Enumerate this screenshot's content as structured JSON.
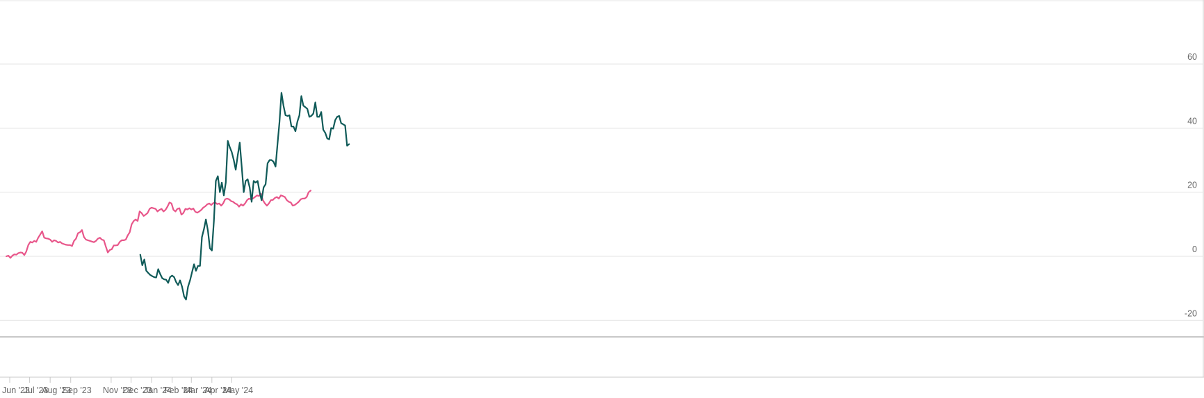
{
  "chart_data": {
    "type": "line",
    "title": "",
    "xlabel": "",
    "ylabel": "",
    "ylim": [
      -20,
      60
    ],
    "y_ticks": [
      -20,
      0,
      20,
      40,
      60
    ],
    "y_axis_side": "right",
    "grid": "horizontal",
    "x_ticks": [
      {
        "label": "Jun '23",
        "date": "2023-06-01"
      },
      {
        "label": "Jul '23",
        "date": "2023-07-01"
      },
      {
        "label": "Aug '23",
        "date": "2023-08-01"
      },
      {
        "label": "Sep '23",
        "date": "2023-09-01"
      },
      {
        "label": "Nov '23",
        "date": "2023-11-01"
      },
      {
        "label": "Dec '23",
        "date": "2023-12-01"
      },
      {
        "label": "Jan '24",
        "date": "2024-01-01"
      },
      {
        "label": "Feb '24",
        "date": "2024-02-01"
      },
      {
        "label": "Mar '24",
        "date": "2024-03-01"
      },
      {
        "label": "Apr '24",
        "date": "2024-04-01"
      },
      {
        "label": "May '24",
        "date": "2024-05-01"
      }
    ],
    "series": [
      {
        "color": "#e8568a",
        "points": [
          [
            "2023-05-27",
            0
          ],
          [
            "2023-05-30",
            0.2
          ],
          [
            "2023-06-02",
            -0.5
          ],
          [
            "2023-06-05",
            0.2
          ],
          [
            "2023-06-08",
            0.6
          ],
          [
            "2023-06-11",
            0.5
          ],
          [
            "2023-06-14",
            1.0
          ],
          [
            "2023-06-17",
            1.2
          ],
          [
            "2023-06-20",
            1.1
          ],
          [
            "2023-06-23",
            0.4
          ],
          [
            "2023-06-26",
            1.5
          ],
          [
            "2023-06-29",
            3.5
          ],
          [
            "2023-07-02",
            4.5
          ],
          [
            "2023-07-05",
            4.3
          ],
          [
            "2023-07-08",
            4.8
          ],
          [
            "2023-07-11",
            4.5
          ],
          [
            "2023-07-14",
            5.8
          ],
          [
            "2023-07-17",
            6.8
          ],
          [
            "2023-07-20",
            7.8
          ],
          [
            "2023-07-23",
            5.8
          ],
          [
            "2023-07-26",
            5.6
          ],
          [
            "2023-07-29",
            5.5
          ],
          [
            "2023-08-01",
            5.2
          ],
          [
            "2023-08-04",
            4.5
          ],
          [
            "2023-08-07",
            5.0
          ],
          [
            "2023-08-10",
            4.8
          ],
          [
            "2023-08-13",
            4.3
          ],
          [
            "2023-08-16",
            4.5
          ],
          [
            "2023-08-19",
            4.0
          ],
          [
            "2023-08-22",
            3.8
          ],
          [
            "2023-08-25",
            3.6
          ],
          [
            "2023-08-28",
            3.5
          ],
          [
            "2023-08-31",
            3.5
          ],
          [
            "2023-09-03",
            3.2
          ],
          [
            "2023-09-06",
            4.8
          ],
          [
            "2023-09-09",
            5.5
          ],
          [
            "2023-09-12",
            7.2
          ],
          [
            "2023-09-15",
            7.5
          ],
          [
            "2023-09-18",
            8.2
          ],
          [
            "2023-09-21",
            6.0
          ],
          [
            "2023-09-24",
            5.2
          ],
          [
            "2023-09-27",
            5.0
          ],
          [
            "2023-09-30",
            4.8
          ],
          [
            "2023-10-03",
            4.6
          ],
          [
            "2023-10-06",
            4.4
          ],
          [
            "2023-10-09",
            4.8
          ],
          [
            "2023-10-12",
            5.5
          ],
          [
            "2023-10-15",
            5.8
          ],
          [
            "2023-10-18",
            5.2
          ],
          [
            "2023-10-21",
            5.0
          ],
          [
            "2023-10-24",
            3.0
          ],
          [
            "2023-10-27",
            1.2
          ],
          [
            "2023-10-30",
            2.0
          ],
          [
            "2023-11-02",
            2.2
          ],
          [
            "2023-11-05",
            3.4
          ],
          [
            "2023-11-08",
            3.4
          ],
          [
            "2023-11-11",
            3.5
          ],
          [
            "2023-11-14",
            4.5
          ],
          [
            "2023-11-17",
            5.0
          ],
          [
            "2023-11-20",
            5.0
          ],
          [
            "2023-11-23",
            5.2
          ],
          [
            "2023-11-26",
            6.5
          ],
          [
            "2023-11-29",
            7.5
          ],
          [
            "2023-12-02",
            10.0
          ],
          [
            "2023-12-05",
            11.0
          ],
          [
            "2023-12-08",
            11.5
          ],
          [
            "2023-12-11",
            11.0
          ],
          [
            "2023-12-14",
            14.0
          ],
          [
            "2023-12-17",
            13.5
          ],
          [
            "2023-12-20",
            12.6
          ],
          [
            "2023-12-23",
            13.0
          ],
          [
            "2023-12-26",
            13.5
          ],
          [
            "2023-12-29",
            14.8
          ],
          [
            "2024-01-01",
            15.2
          ],
          [
            "2024-01-04",
            15.0
          ],
          [
            "2024-01-07",
            14.8
          ],
          [
            "2024-01-10",
            14.0
          ],
          [
            "2024-01-13",
            14.5
          ],
          [
            "2024-01-16",
            14.8
          ],
          [
            "2024-01-19",
            14.0
          ],
          [
            "2024-01-22",
            14.5
          ],
          [
            "2024-01-25",
            15.5
          ],
          [
            "2024-01-28",
            16.8
          ],
          [
            "2024-01-31",
            16.5
          ],
          [
            "2024-02-03",
            14.5
          ],
          [
            "2024-02-06",
            14.0
          ],
          [
            "2024-02-09",
            14.8
          ],
          [
            "2024-02-12",
            15.0
          ],
          [
            "2024-02-15",
            13.0
          ],
          [
            "2024-02-18",
            13.5
          ],
          [
            "2024-02-21",
            14.8
          ],
          [
            "2024-02-24",
            14.6
          ],
          [
            "2024-02-27",
            15.0
          ],
          [
            "2024-03-01",
            14.6
          ],
          [
            "2024-03-04",
            14.9
          ],
          [
            "2024-03-07",
            13.9
          ],
          [
            "2024-03-10",
            13.6
          ],
          [
            "2024-03-13",
            14.0
          ],
          [
            "2024-03-16",
            14.5
          ],
          [
            "2024-03-19",
            15.2
          ],
          [
            "2024-03-22",
            15.6
          ],
          [
            "2024-03-25",
            16.2
          ],
          [
            "2024-03-28",
            16.5
          ],
          [
            "2024-03-31",
            16.0
          ],
          [
            "2024-04-03",
            16.6
          ],
          [
            "2024-04-06",
            16.8
          ],
          [
            "2024-04-09",
            16.3
          ],
          [
            "2024-04-12",
            16.5
          ],
          [
            "2024-04-15",
            15.8
          ],
          [
            "2024-04-18",
            16.5
          ],
          [
            "2024-04-21",
            17.8
          ],
          [
            "2024-04-24",
            18.0
          ],
          [
            "2024-04-27",
            17.8
          ],
          [
            "2024-04-30",
            17.2
          ],
          [
            "2024-05-03",
            17.0
          ],
          [
            "2024-05-06",
            16.5
          ],
          [
            "2024-05-09",
            16.2
          ],
          [
            "2024-05-12",
            15.5
          ],
          [
            "2024-05-15",
            16.2
          ],
          [
            "2024-05-18",
            15.8
          ],
          [
            "2024-05-21",
            16.5
          ],
          [
            "2024-05-24",
            17.5
          ],
          [
            "2024-05-27",
            18.0
          ],
          [
            "2024-05-30",
            17.8
          ],
          [
            "2024-06-02",
            18.0
          ],
          [
            "2024-06-05",
            18.5
          ],
          [
            "2024-06-08",
            19.0
          ],
          [
            "2024-06-11",
            18.8
          ],
          [
            "2024-06-14",
            19.5
          ],
          [
            "2024-06-17",
            17.5
          ],
          [
            "2024-06-20",
            16.5
          ],
          [
            "2024-06-23",
            15.8
          ],
          [
            "2024-06-26",
            16.5
          ],
          [
            "2024-06-29",
            17.5
          ],
          [
            "2024-07-02",
            17.6
          ],
          [
            "2024-07-05",
            18.2
          ],
          [
            "2024-07-08",
            18.5
          ],
          [
            "2024-07-11",
            18.0
          ],
          [
            "2024-07-14",
            19.0
          ],
          [
            "2024-07-17",
            18.8
          ],
          [
            "2024-07-20",
            18.5
          ],
          [
            "2024-07-23",
            17.5
          ],
          [
            "2024-07-26",
            17.0
          ],
          [
            "2024-07-29",
            16.8
          ],
          [
            "2024-08-01",
            15.8
          ],
          [
            "2024-08-04",
            16.0
          ],
          [
            "2024-08-07",
            16.5
          ],
          [
            "2024-08-10",
            17.0
          ],
          [
            "2024-08-13",
            17.8
          ],
          [
            "2024-08-16",
            18.0
          ],
          [
            "2024-08-19",
            18.0
          ],
          [
            "2024-08-22",
            18.5
          ],
          [
            "2024-08-25",
            20.0
          ],
          [
            "2024-08-28",
            20.5
          ]
        ]
      },
      {
        "color": "#0f5a58",
        "points": [
          [
            "2023-12-15",
            0.5
          ],
          [
            "2023-12-18",
            -2.8
          ],
          [
            "2023-12-21",
            -1.0
          ],
          [
            "2023-12-24",
            -4.5
          ],
          [
            "2023-12-27",
            -5.2
          ],
          [
            "2023-12-30",
            -5.8
          ],
          [
            "2024-01-02",
            -6.2
          ],
          [
            "2024-01-05",
            -6.5
          ],
          [
            "2024-01-08",
            -6.6
          ],
          [
            "2024-01-11",
            -4.0
          ],
          [
            "2024-01-14",
            -5.5
          ],
          [
            "2024-01-17",
            -6.8
          ],
          [
            "2024-01-20",
            -7.2
          ],
          [
            "2024-01-23",
            -7.3
          ],
          [
            "2024-01-26",
            -8.3
          ],
          [
            "2024-01-29",
            -6.5
          ],
          [
            "2024-02-01",
            -6.0
          ],
          [
            "2024-02-04",
            -6.5
          ],
          [
            "2024-02-07",
            -8.0
          ],
          [
            "2024-02-10",
            -9.0
          ],
          [
            "2024-02-13",
            -7.5
          ],
          [
            "2024-02-16",
            -9.5
          ],
          [
            "2024-02-19",
            -12.5
          ],
          [
            "2024-02-22",
            -13.5
          ],
          [
            "2024-02-25",
            -9.5
          ],
          [
            "2024-02-28",
            -7.5
          ],
          [
            "2024-03-02",
            -5.0
          ],
          [
            "2024-03-05",
            -2.5
          ],
          [
            "2024-03-08",
            -4.5
          ],
          [
            "2024-03-11",
            -3.0
          ],
          [
            "2024-03-14",
            -3.0
          ],
          [
            "2024-03-17",
            6.0
          ],
          [
            "2024-03-20",
            8.5
          ],
          [
            "2024-03-23",
            11.5
          ],
          [
            "2024-03-26",
            8.0
          ],
          [
            "2024-03-29",
            2.5
          ],
          [
            "2024-04-01",
            1.8
          ],
          [
            "2024-04-04",
            11.0
          ],
          [
            "2024-04-07",
            23.5
          ],
          [
            "2024-04-10",
            25.0
          ],
          [
            "2024-04-13",
            20.0
          ],
          [
            "2024-04-16",
            23.0
          ],
          [
            "2024-04-19",
            19.0
          ],
          [
            "2024-04-22",
            23.0
          ],
          [
            "2024-04-25",
            36.0
          ],
          [
            "2024-04-28",
            34.0
          ],
          [
            "2024-05-01",
            32.5
          ],
          [
            "2024-05-04",
            30.0
          ],
          [
            "2024-05-07",
            27.0
          ],
          [
            "2024-05-10",
            31.5
          ],
          [
            "2024-05-13",
            35.5
          ],
          [
            "2024-05-16",
            28.0
          ],
          [
            "2024-05-19",
            20.0
          ],
          [
            "2024-05-22",
            23.5
          ],
          [
            "2024-05-25",
            24.0
          ],
          [
            "2024-05-28",
            21.5
          ],
          [
            "2024-05-31",
            17.0
          ],
          [
            "2024-06-03",
            23.5
          ],
          [
            "2024-06-06",
            23.0
          ],
          [
            "2024-06-09",
            23.5
          ],
          [
            "2024-06-12",
            20.0
          ],
          [
            "2024-06-15",
            17.5
          ],
          [
            "2024-06-18",
            21.5
          ],
          [
            "2024-06-21",
            22.5
          ],
          [
            "2024-06-24",
            29.0
          ],
          [
            "2024-06-27",
            30.0
          ],
          [
            "2024-06-30",
            30.0
          ],
          [
            "2024-07-03",
            29.5
          ],
          [
            "2024-07-06",
            28.0
          ],
          [
            "2024-07-09",
            35.0
          ],
          [
            "2024-07-12",
            42.0
          ],
          [
            "2024-07-15",
            51.0
          ],
          [
            "2024-07-18",
            47.0
          ],
          [
            "2024-07-21",
            44.0
          ],
          [
            "2024-07-24",
            43.8
          ],
          [
            "2024-07-27",
            44.0
          ],
          [
            "2024-07-30",
            40.5
          ],
          [
            "2024-08-02",
            40.5
          ],
          [
            "2024-08-05",
            39.0
          ],
          [
            "2024-08-08",
            42.0
          ],
          [
            "2024-08-11",
            44.0
          ],
          [
            "2024-08-14",
            50.0
          ],
          [
            "2024-08-17",
            47.0
          ],
          [
            "2024-08-20",
            46.5
          ],
          [
            "2024-08-23",
            46.0
          ],
          [
            "2024-08-26",
            43.5
          ],
          [
            "2024-08-29",
            43.8
          ],
          [
            "2024-09-01",
            44.5
          ],
          [
            "2024-09-04",
            48.0
          ],
          [
            "2024-09-07",
            43.5
          ],
          [
            "2024-09-10",
            43.5
          ],
          [
            "2024-09-13",
            45.0
          ],
          [
            "2024-09-16",
            39.5
          ],
          [
            "2024-09-19",
            38.5
          ],
          [
            "2024-09-22",
            36.8
          ],
          [
            "2024-09-25",
            36.5
          ],
          [
            "2024-09-28",
            40.0
          ],
          [
            "2024-10-01",
            39.8
          ],
          [
            "2024-10-04",
            42.5
          ],
          [
            "2024-10-07",
            43.5
          ],
          [
            "2024-10-10",
            43.8
          ],
          [
            "2024-10-13",
            41.5
          ],
          [
            "2024-10-16",
            41.2
          ],
          [
            "2024-10-19",
            40.8
          ],
          [
            "2024-10-22",
            34.5
          ],
          [
            "2024-10-25",
            35.0
          ]
        ]
      }
    ]
  }
}
